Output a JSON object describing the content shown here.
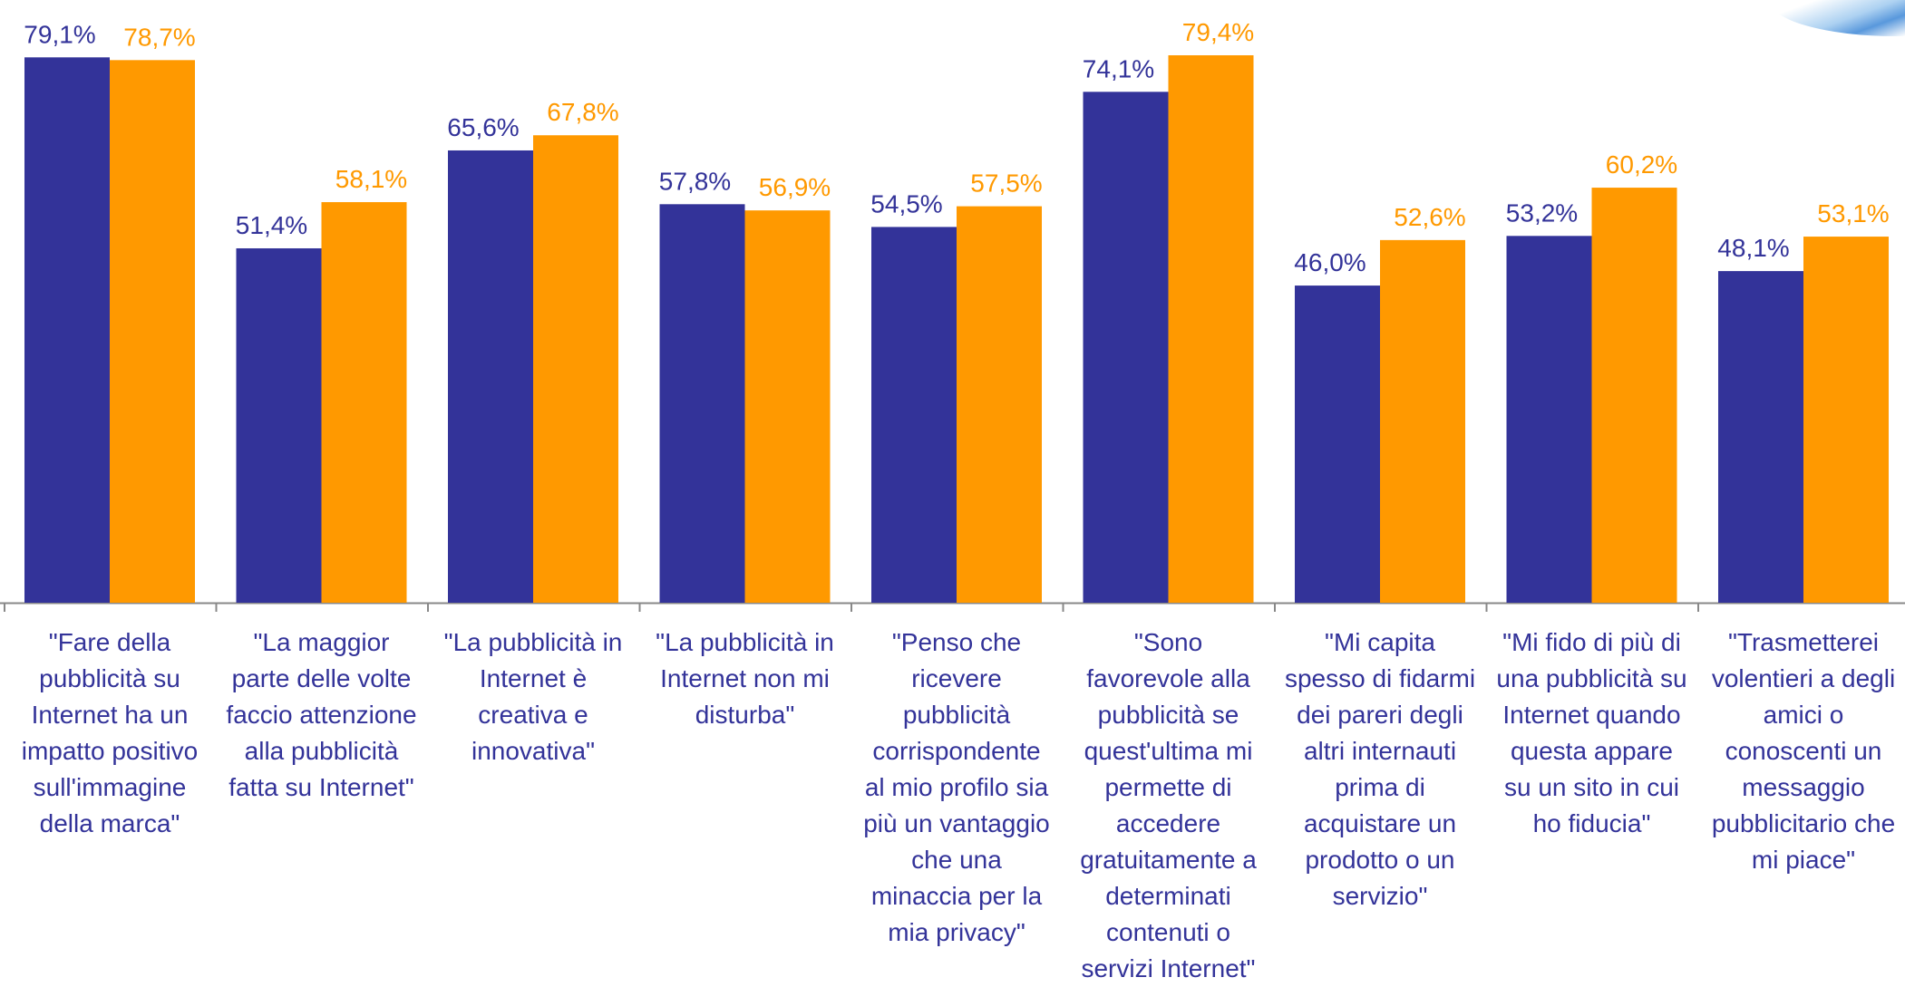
{
  "colors": {
    "series1": "#333399",
    "series2": "#ff9900",
    "label1": "#333399",
    "label2": "#ff9900",
    "axis": "#888888"
  },
  "chart_data": {
    "type": "bar",
    "title": "",
    "xlabel": "",
    "ylabel": "",
    "ylim": [
      0,
      100
    ],
    "grid": false,
    "legend": "none",
    "categories": [
      "\"Fare della pubblicità su Internet ha un impatto positivo sull'immagine della marca\"",
      "\"La maggior parte delle volte faccio attenzione alla pubblicità fatta su Internet\"",
      "\"La pubblicità in Internet è creativa e innovativa\"",
      "\"La pubblicità in Internet  non mi disturba\"",
      "\"Penso che ricevere pubblicità corrispondente al mio profilo sia più un vantaggio che una minaccia per la mia privacy\"",
      "\"Sono favorevole alla pubblicità se quest'ultima mi permette di accedere gratuitamente a determinati contenuti o servizi Internet\"",
      "\"Mi capita spesso di fidarmi dei pareri degli altri internauti prima di acquistare un prodotto o un servizio\"",
      "\"Mi fido di più di una pubblicità su Internet quando questa appare su un sito in cui ho fiducia\"",
      "\"Trasmetterei volentieri a degli amici o conoscenti un messaggio pubblicitario che mi piace\""
    ],
    "category_lines": [
      "\"Fare della\npubblicità su\nInternet ha un\nimpatto positivo\nsull'immagine\ndella marca\"",
      "\"La maggior\nparte delle volte\nfaccio attenzione\nalla pubblicità\nfatta su Internet\"",
      "\"La pubblicità in\nInternet è\ncreativa e\ninnovativa\"",
      "\"La pubblicità in\nInternet  non mi\ndisturba\"",
      "\"Penso che\nricevere\npubblicità\ncorrispondente\nal mio profilo sia\npiù un vantaggio\nche una\nminaccia per la\nmia privacy\"",
      "\"Sono\nfavorevole alla\npubblicità se\nquest'ultima mi\npermette di\naccedere\ngratuitamente a\ndeterminati\ncontenuti o\nservizi Internet\"",
      "\"Mi capita\nspesso di fidarmi\ndei pareri degli\naltri internauti\nprima di\nacquistare un\nprodotto o un\nservizio\"",
      "\"Mi fido di più di\nuna pubblicità su\nInternet quando\nquesta appare\nsu un sito in cui\nho fiducia\"",
      "\"Trasmetterei\nvolentieri a degli\namici o\nconoscenti un\nmessaggio\npubblicitario che\nmi piace\""
    ],
    "series": [
      {
        "values": [
          79.1,
          51.4,
          65.6,
          57.8,
          54.5,
          74.1,
          46.0,
          53.2,
          48.1
        ],
        "labels": [
          "79,1%",
          "51,4%",
          "65,6%",
          "57,8%",
          "54,5%",
          "74,1%",
          "46,0%",
          "53,2%",
          "48,1%"
        ]
      },
      {
        "values": [
          78.7,
          58.1,
          67.8,
          56.9,
          57.5,
          79.4,
          52.6,
          60.2,
          53.1
        ],
        "labels": [
          "78,7%",
          "58,1%",
          "67,8%",
          "56,9%",
          "57,5%",
          "79,4%",
          "52,6%",
          "60,2%",
          "53,1%"
        ]
      }
    ]
  }
}
